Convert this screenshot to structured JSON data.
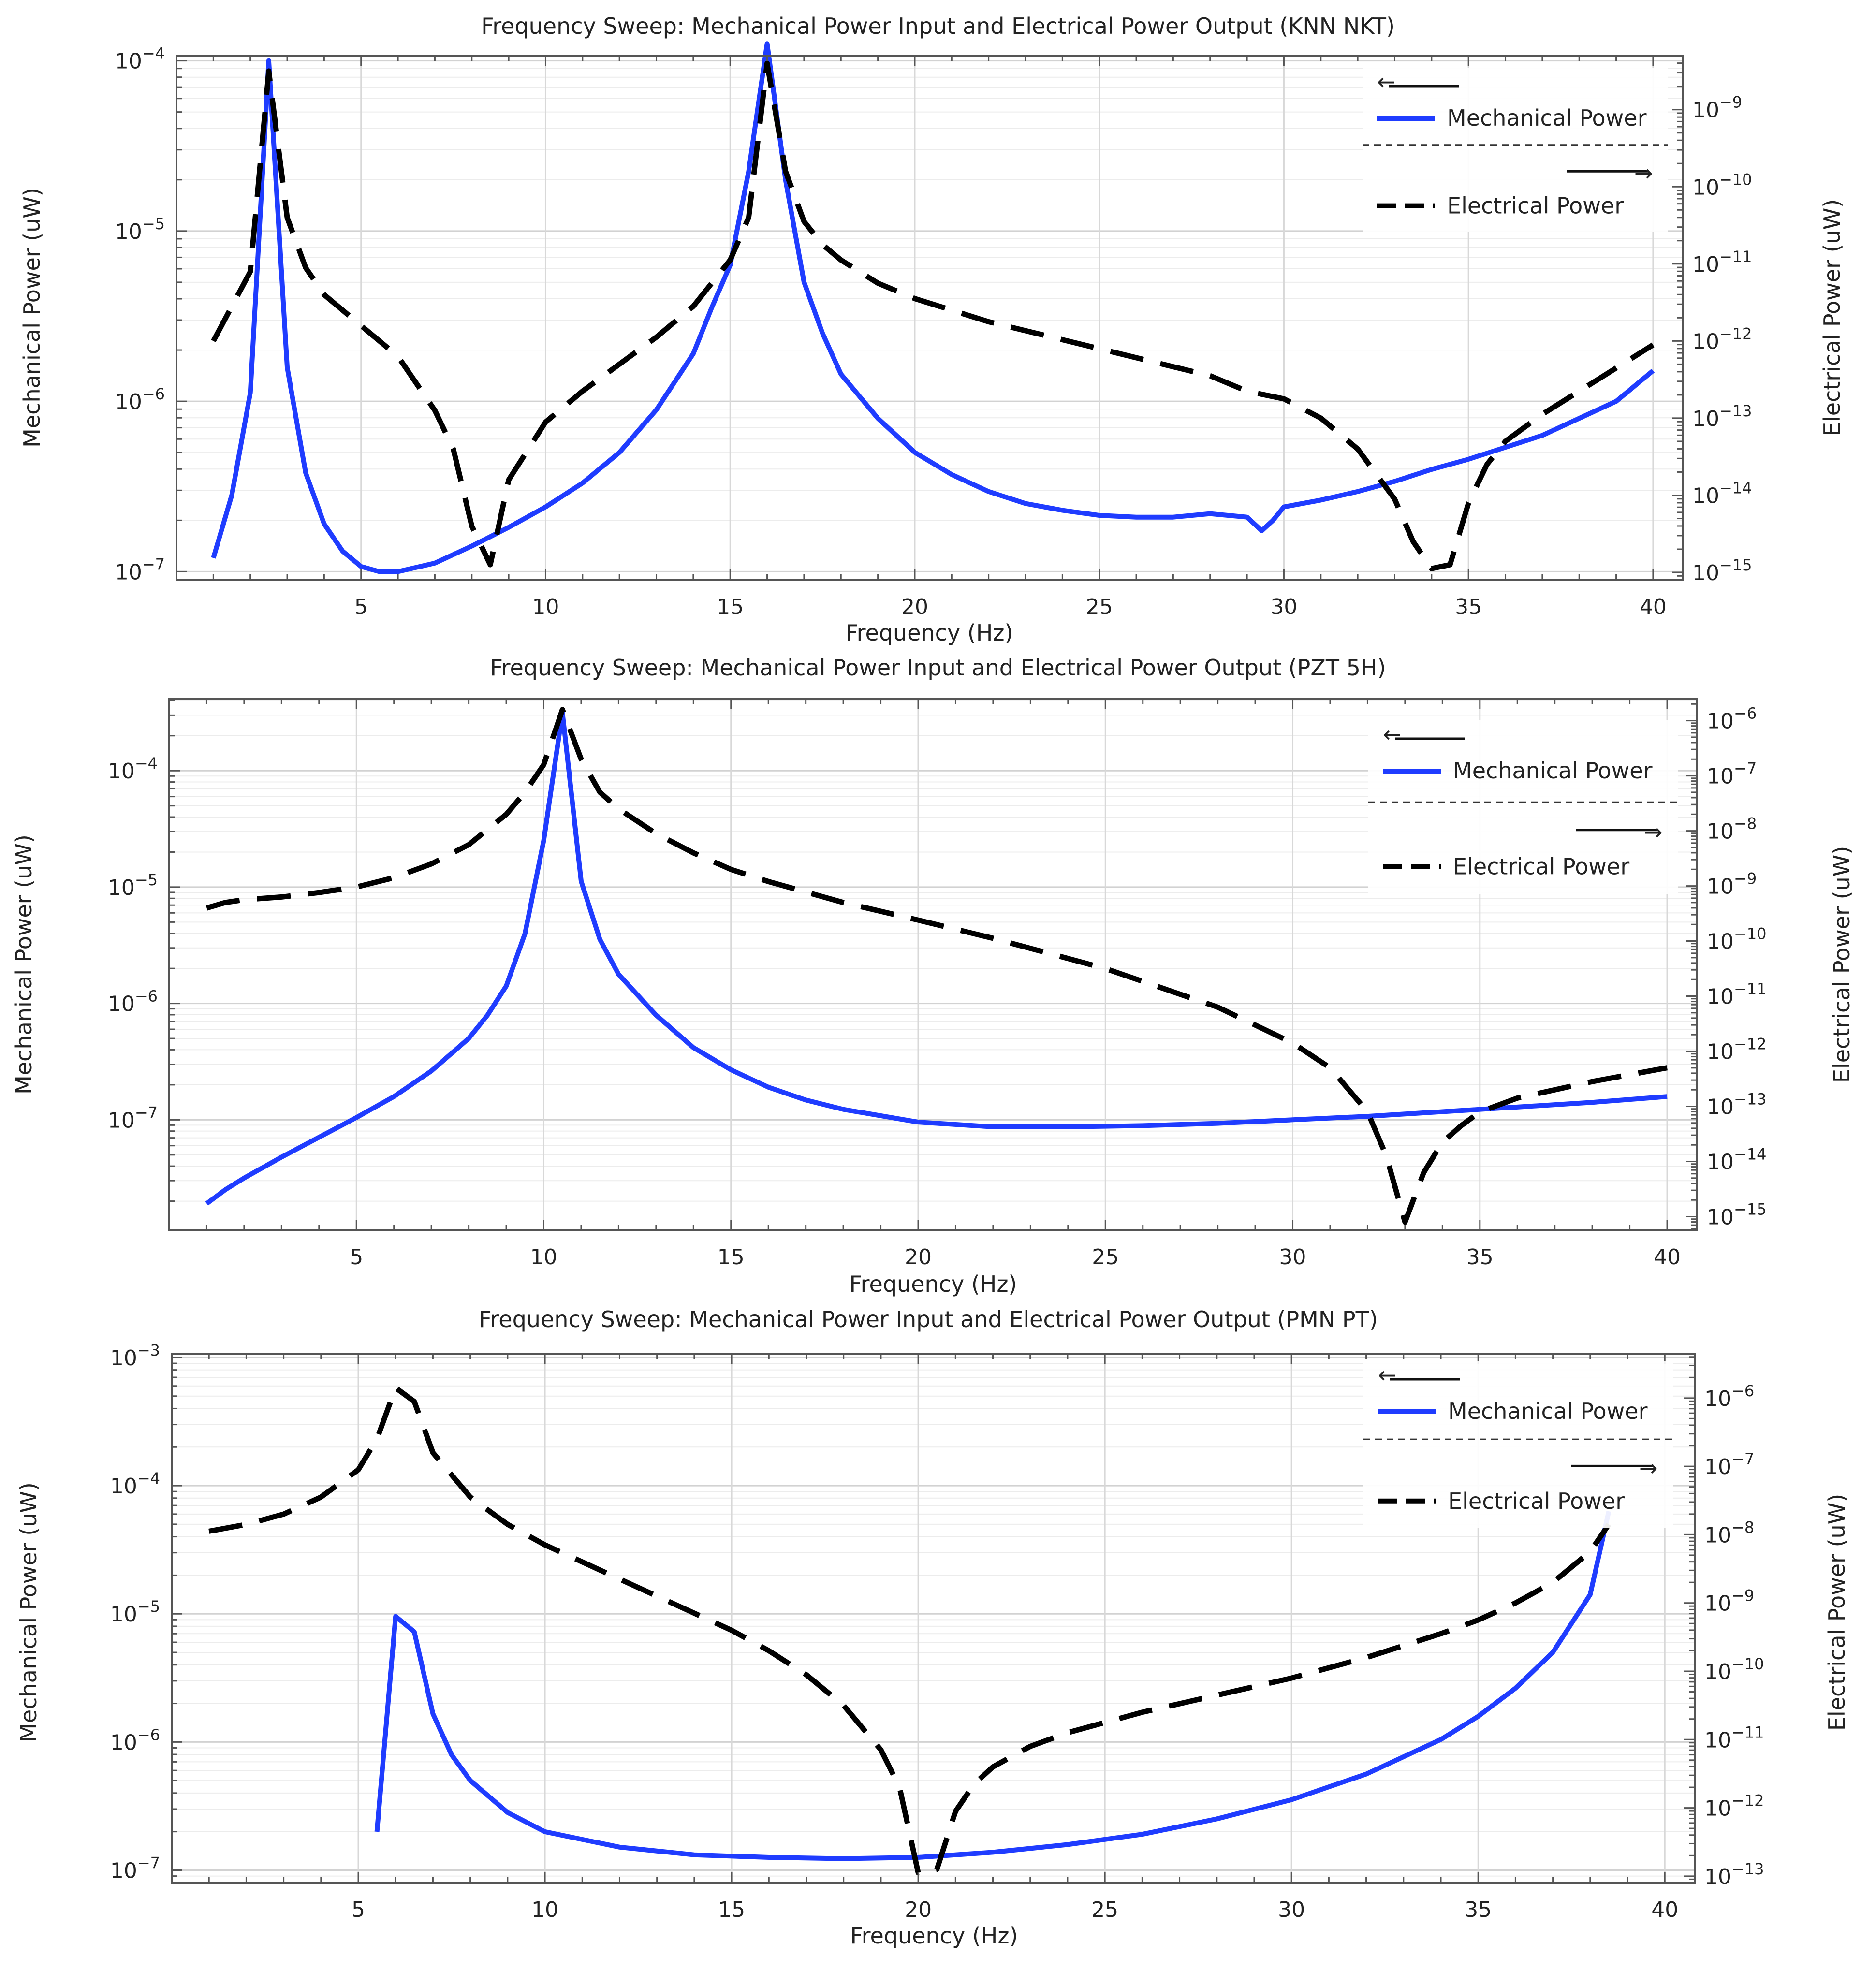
{
  "chart_data": [
    {
      "type": "line",
      "title": "Frequency Sweep: Mechanical Power Input and Electrical Power Output (KNN NKT)",
      "xlabel": "Frequency (Hz)",
      "ylabel_left": "Mechanical Power (uW)",
      "ylabel_right": "Electrical Power (uW)",
      "xlim": [
        0,
        40.8
      ],
      "x_ticks": [
        5,
        10,
        15,
        20,
        25,
        30,
        35,
        40
      ],
      "left_ylim_exp": [
        -7.05,
        -3.97
      ],
      "left_tick_exps": [
        -7,
        -6,
        -5,
        -4
      ],
      "right_ylim_exp": [
        -15.1,
        -8.3
      ],
      "right_tick_exps": [
        -15,
        -14,
        -13,
        -12,
        -11,
        -10,
        -9
      ],
      "legend": {
        "left_arrow": "←",
        "mechanical": "Mechanical Power",
        "right_arrow": "→",
        "electrical": "Electrical Power"
      },
      "series": [
        {
          "name": "Mechanical Power",
          "axis": "left",
          "color": "#1f3cff",
          "x": [
            1,
            1.5,
            2,
            2.5,
            3,
            3.5,
            4,
            4.5,
            5,
            5.5,
            6,
            7,
            8,
            9,
            10,
            11,
            12,
            13,
            14,
            14.5,
            15,
            15.5,
            16,
            16.5,
            17,
            17.5,
            18,
            19,
            20,
            21,
            22,
            23,
            24,
            25,
            26,
            27,
            28,
            28.5,
            29,
            29.4,
            29.7,
            30,
            31,
            32,
            33,
            34,
            35,
            36,
            37,
            38,
            39,
            40
          ],
          "y_exp": [
            -6.92,
            -6.55,
            -5.95,
            -4.0,
            -5.8,
            -6.42,
            -6.72,
            -6.88,
            -6.97,
            -7.0,
            -7.0,
            -6.95,
            -6.85,
            -6.74,
            -6.62,
            -6.48,
            -6.3,
            -6.05,
            -5.72,
            -5.45,
            -5.2,
            -4.65,
            -3.9,
            -4.7,
            -5.3,
            -5.6,
            -5.84,
            -6.1,
            -6.3,
            -6.43,
            -6.53,
            -6.6,
            -6.64,
            -6.67,
            -6.68,
            -6.68,
            -6.66,
            -6.67,
            -6.68,
            -6.76,
            -6.7,
            -6.62,
            -6.58,
            -6.53,
            -6.47,
            -6.4,
            -6.34,
            -6.27,
            -6.2,
            -6.1,
            -6.0,
            -5.82
          ]
        },
        {
          "name": "Electrical Power",
          "axis": "right",
          "color": "#000000",
          "x": [
            1,
            1.5,
            2,
            2.5,
            3,
            3.5,
            4,
            5,
            6,
            7,
            7.5,
            8,
            8.5,
            9,
            10,
            11,
            12,
            13,
            14,
            15,
            15.5,
            16,
            16.5,
            17,
            17.5,
            18,
            19,
            20,
            22,
            25,
            28,
            29,
            30,
            31,
            32,
            33,
            33.5,
            34,
            34.5,
            35,
            35.5,
            36,
            37,
            38,
            39,
            40
          ],
          "y_exp": [
            -12.0,
            -11.55,
            -11.1,
            -8.5,
            -10.4,
            -11.05,
            -11.4,
            -11.8,
            -12.2,
            -12.9,
            -13.4,
            -14.4,
            -14.9,
            -13.8,
            -13.05,
            -12.65,
            -12.3,
            -11.95,
            -11.55,
            -10.95,
            -10.4,
            -8.4,
            -9.8,
            -10.45,
            -10.75,
            -10.95,
            -11.25,
            -11.45,
            -11.75,
            -12.1,
            -12.45,
            -12.65,
            -12.75,
            -13.0,
            -13.4,
            -14.05,
            -14.6,
            -14.95,
            -14.9,
            -14.1,
            -13.6,
            -13.3,
            -12.95,
            -12.65,
            -12.35,
            -12.05
          ]
        }
      ]
    },
    {
      "type": "line",
      "title": "Frequency Sweep: Mechanical Power Input and Electrical Power Output (PZT 5H)",
      "xlabel": "Frequency (Hz)",
      "ylabel_left": "Mechanical Power (uW)",
      "ylabel_right": "Electrical Power (uW)",
      "xlim": [
        0,
        40.8
      ],
      "x_ticks": [
        5,
        10,
        15,
        20,
        25,
        30,
        35,
        40
      ],
      "left_ylim_exp": [
        -7.95,
        -3.38
      ],
      "left_tick_exps": [
        -7,
        -6,
        -5,
        -4
      ],
      "right_ylim_exp": [
        -15.25,
        -5.6
      ],
      "right_tick_exps": [
        -15,
        -14,
        -13,
        -12,
        -11,
        -10,
        -9,
        -8,
        -7,
        -6
      ],
      "legend": {
        "left_arrow": "←",
        "mechanical": "Mechanical Power",
        "right_arrow": "→",
        "electrical": "Electrical Power"
      },
      "series": [
        {
          "name": "Mechanical Power",
          "axis": "left",
          "color": "#1f3cff",
          "x": [
            1,
            1.5,
            2,
            3,
            4,
            5,
            6,
            7,
            8,
            8.5,
            9,
            9.5,
            10,
            10.5,
            11,
            11.5,
            12,
            13,
            14,
            15,
            16,
            17,
            18,
            20,
            22,
            24,
            26,
            28,
            30,
            32,
            34,
            36,
            38,
            40
          ],
          "y_exp": [
            -7.72,
            -7.6,
            -7.5,
            -7.32,
            -7.15,
            -6.98,
            -6.8,
            -6.58,
            -6.3,
            -6.1,
            -5.85,
            -5.4,
            -4.6,
            -3.5,
            -4.95,
            -5.45,
            -5.75,
            -6.1,
            -6.38,
            -6.57,
            -6.72,
            -6.83,
            -6.91,
            -7.02,
            -7.06,
            -7.06,
            -7.05,
            -7.03,
            -7.0,
            -6.97,
            -6.93,
            -6.89,
            -6.85,
            -6.8
          ]
        },
        {
          "name": "Electrical Power",
          "axis": "right",
          "color": "#000000",
          "x": [
            1,
            1.5,
            2,
            3,
            4,
            5,
            6,
            7,
            8,
            9,
            9.5,
            10,
            10.5,
            11,
            11.5,
            12,
            13,
            14,
            15,
            16,
            18,
            20,
            22,
            25,
            28,
            30,
            31,
            32,
            32.5,
            33,
            33.5,
            34,
            34.5,
            35,
            36,
            38,
            40
          ],
          "y_exp": [
            -9.4,
            -9.3,
            -9.25,
            -9.2,
            -9.12,
            -9.02,
            -8.85,
            -8.6,
            -8.25,
            -7.7,
            -7.3,
            -6.8,
            -5.8,
            -6.7,
            -7.3,
            -7.6,
            -8.05,
            -8.4,
            -8.7,
            -8.92,
            -9.3,
            -9.62,
            -9.95,
            -10.5,
            -11.2,
            -11.85,
            -12.3,
            -13.1,
            -13.9,
            -15.1,
            -14.2,
            -13.65,
            -13.35,
            -13.1,
            -12.85,
            -12.55,
            -12.3
          ]
        }
      ]
    },
    {
      "type": "line",
      "title": "Frequency Sweep: Mechanical Power Input and Electrical Power Output (PMN PT)",
      "xlabel": "Frequency (Hz)",
      "ylabel_left": "Mechanical Power (uW)",
      "ylabel_right": "Electrical Power (uW)",
      "xlim": [
        0,
        40.8
      ],
      "x_ticks": [
        5,
        10,
        15,
        20,
        25,
        30,
        35,
        40
      ],
      "left_ylim_exp": [
        -7.1,
        -2.97
      ],
      "left_tick_exps": [
        -7,
        -6,
        -5,
        -4,
        -3
      ],
      "right_ylim_exp": [
        -13.1,
        -5.35
      ],
      "right_tick_exps": [
        -13,
        -12,
        -11,
        -10,
        -9,
        -8,
        -7,
        -6
      ],
      "legend": {
        "left_arrow": "←",
        "mechanical": "Mechanical Power",
        "right_arrow": "→",
        "electrical": "Electrical Power"
      },
      "series": [
        {
          "name": "Mechanical Power",
          "axis": "left",
          "color": "#1f3cff",
          "x": [
            5.5,
            6,
            6.5,
            7,
            7.5,
            8,
            9,
            10,
            12,
            14,
            16,
            18,
            20,
            22,
            24,
            26,
            28,
            30,
            32,
            34,
            35,
            36,
            37,
            38,
            38.5
          ],
          "y_exp": [
            -6.7,
            -5.02,
            -5.14,
            -5.78,
            -6.1,
            -6.3,
            -6.55,
            -6.7,
            -6.82,
            -6.88,
            -6.9,
            -6.91,
            -6.9,
            -6.86,
            -6.8,
            -6.72,
            -6.6,
            -6.45,
            -6.25,
            -5.98,
            -5.8,
            -5.58,
            -5.3,
            -4.85,
            -4.2
          ]
        },
        {
          "name": "Electrical Power",
          "axis": "right",
          "color": "#000000",
          "x": [
            1,
            2,
            3,
            4,
            5,
            5.5,
            6,
            6.5,
            7,
            8,
            9,
            10,
            11,
            12,
            13,
            14,
            15,
            16,
            17,
            18,
            19,
            19.5,
            20,
            20.5,
            21,
            21.5,
            22,
            23,
            24,
            25,
            26,
            28,
            30,
            32,
            34,
            35,
            36,
            37,
            38,
            38.5
          ],
          "y_exp": [
            -7.95,
            -7.85,
            -7.7,
            -7.45,
            -7.05,
            -6.6,
            -5.85,
            -6.05,
            -6.8,
            -7.45,
            -7.85,
            -8.15,
            -8.4,
            -8.65,
            -8.9,
            -9.15,
            -9.4,
            -9.7,
            -10.05,
            -10.5,
            -11.15,
            -11.7,
            -12.95,
            -12.9,
            -12.05,
            -11.65,
            -11.4,
            -11.1,
            -10.9,
            -10.75,
            -10.6,
            -10.35,
            -10.1,
            -9.8,
            -9.45,
            -9.25,
            -9.0,
            -8.7,
            -8.25,
            -7.85
          ]
        }
      ]
    }
  ]
}
